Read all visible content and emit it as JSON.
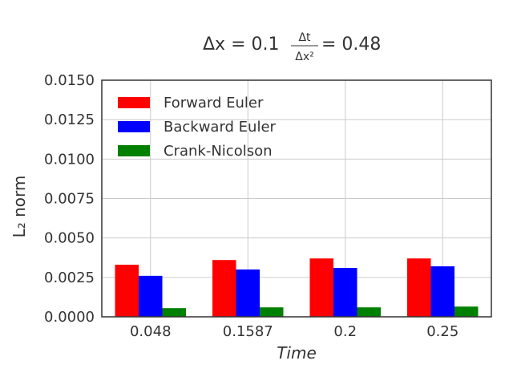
{
  "chart_data": {
    "type": "bar",
    "title": {
      "lhs": "Δx = 0.1",
      "frac_num": "Δt",
      "frac_den": "Δx²",
      "rhs": "= 0.48"
    },
    "xlabel": "Time",
    "ylabel": "L₂ norm",
    "categories": [
      "0.048",
      "0.1587",
      "0.2",
      "0.25"
    ],
    "ylim": [
      0,
      0.015
    ],
    "yticks": [
      "0.0000",
      "0.0025",
      "0.0050",
      "0.0075",
      "0.0100",
      "0.0125",
      "0.0150"
    ],
    "grid": true,
    "legend_position": "top-left",
    "series": [
      {
        "name": "Forward Euler",
        "color": "#ff0000",
        "values": [
          0.0033,
          0.0036,
          0.0037,
          0.0037
        ]
      },
      {
        "name": "Backward Euler",
        "color": "#0000ff",
        "values": [
          0.0026,
          0.003,
          0.0031,
          0.0032
        ]
      },
      {
        "name": "Crank-Nicolson",
        "color": "#008000",
        "values": [
          0.00055,
          0.0006,
          0.0006,
          0.00065
        ]
      }
    ]
  }
}
